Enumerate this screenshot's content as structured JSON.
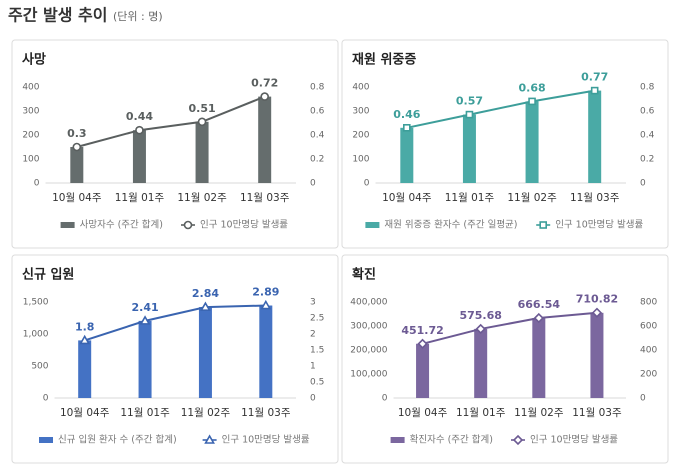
{
  "header": {
    "title": "주간 발생 추이",
    "unit": "(단위 : 명)"
  },
  "chart_data": [
    {
      "type": "combo",
      "title": "사망",
      "categories": [
        "10월 04주",
        "11월 01주",
        "11월 02주",
        "11월 03주"
      ],
      "series": [
        {
          "name": "사망자수 (주간 합계)",
          "color": "#656d6d",
          "type": "bar",
          "values": [
            150,
            220,
            255,
            360
          ]
        },
        {
          "name": "인구 10만명당 발생률",
          "color": "#5a5f5f",
          "type": "line",
          "axis": "y2",
          "marker": "circle",
          "values": [
            0.3,
            0.44,
            0.51,
            0.72
          ]
        }
      ],
      "ylim": [
        0,
        400
      ],
      "yticks": [
        0,
        100,
        200,
        300,
        400
      ],
      "y2lim": [
        0,
        0.8
      ],
      "y2ticks": [
        0,
        0.2,
        0.4,
        0.6,
        0.8
      ]
    },
    {
      "type": "combo",
      "title": "재원 위중증",
      "categories": [
        "10월 04주",
        "11월 01주",
        "11월 02주",
        "11월 03주"
      ],
      "series": [
        {
          "name": "재원 위중증 환자수 (주간 일평균)",
          "color": "#4aaaa6",
          "type": "bar",
          "values": [
            230,
            285,
            340,
            385
          ]
        },
        {
          "name": "인구 10만명당 발생률",
          "color": "#3d9e9a",
          "type": "line",
          "axis": "y2",
          "marker": "square",
          "values": [
            0.46,
            0.57,
            0.68,
            0.77
          ]
        }
      ],
      "ylim": [
        0,
        400
      ],
      "yticks": [
        0,
        100,
        200,
        300,
        400
      ],
      "y2lim": [
        0,
        0.8
      ],
      "y2ticks": [
        0,
        0.2,
        0.4,
        0.6,
        0.8
      ]
    },
    {
      "type": "combo",
      "title": "신규 입원",
      "categories": [
        "10월 04주",
        "11월 01주",
        "11월 02주",
        "11월 03주"
      ],
      "series": [
        {
          "name": "신규 입원 환자 수 (주간 합계)",
          "color": "#4472c4",
          "type": "bar",
          "values": [
            900,
            1205,
            1420,
            1445
          ]
        },
        {
          "name": "인구 10만명당 발생률",
          "color": "#3a64b0",
          "type": "line",
          "axis": "y2",
          "marker": "triangle",
          "values": [
            1.8,
            2.41,
            2.84,
            2.89
          ]
        }
      ],
      "ylim": [
        0,
        1500
      ],
      "yticks": [
        0,
        500,
        {
          "value": 1000,
          "label": "1,000"
        },
        {
          "value": 1500,
          "label": "1,500"
        }
      ],
      "y2lim": [
        0,
        3
      ],
      "y2ticks": [
        0,
        0.5,
        1,
        1.5,
        2,
        2.5,
        3
      ]
    },
    {
      "type": "combo",
      "title": "확진",
      "categories": [
        "10월 04주",
        "11월 01주",
        "11월 02주",
        "11월 03주"
      ],
      "series": [
        {
          "name": "확진자수 (주간 합계)",
          "color": "#7b679f",
          "type": "bar",
          "values": [
            226000,
            288000,
            333000,
            355000
          ]
        },
        {
          "name": "인구 10만명당 발생률",
          "color": "#6c5a93",
          "type": "line",
          "axis": "y2",
          "marker": "diamond",
          "values": [
            451.72,
            575.68,
            666.54,
            710.82
          ]
        }
      ],
      "ylim": [
        0,
        400000
      ],
      "yticks": [
        0,
        {
          "value": 100000,
          "label": "100,000"
        },
        {
          "value": 200000,
          "label": "200,000"
        },
        {
          "value": 300000,
          "label": "300,000"
        },
        {
          "value": 400000,
          "label": "400,000"
        }
      ],
      "y2lim": [
        0,
        800
      ],
      "y2ticks": [
        0,
        200,
        400,
        600,
        800
      ]
    }
  ]
}
